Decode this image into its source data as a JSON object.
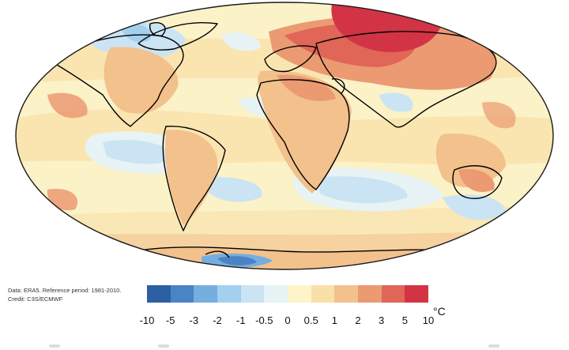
{
  "map": {
    "projection": "Robinson",
    "theme": "surface air temperature anomaly",
    "ocean_background": "#fbf2c7",
    "land_outline_color": "#000000",
    "notable_anomalies": [
      {
        "region": "northern Siberia",
        "class": "5 to 10"
      },
      {
        "region": "Russia and eastern Europe",
        "class": "3 to 5"
      },
      {
        "region": "Antarctic coast (Weddell / Antarctic Peninsula)",
        "class": "-5 to -3"
      },
      {
        "region": "North Atlantic, south of Greenland",
        "class": "-1 to -0.5"
      },
      {
        "region": "eastern Pacific and southern oceans",
        "class": "-1 to 0"
      }
    ]
  },
  "credits": {
    "data_line": "Data: ERA5.  Reference period: 1981-2010.",
    "credit_line": "Credit: C3S/ECMWF"
  },
  "color_scale": {
    "unit": "°C",
    "ticks": [
      "-10",
      "-5",
      "-3",
      "-2",
      "-1",
      "-0.5",
      "0",
      "0.5",
      "1",
      "2",
      "3",
      "5",
      "10"
    ],
    "colors": [
      "#2d5fa4",
      "#4a84c4",
      "#76aee0",
      "#a4d0ef",
      "#cae4f3",
      "#e7f3f4",
      "#fdf5c9",
      "#f9e0a8",
      "#f3c18c",
      "#eb9a72",
      "#e06657",
      "#d23445"
    ]
  }
}
